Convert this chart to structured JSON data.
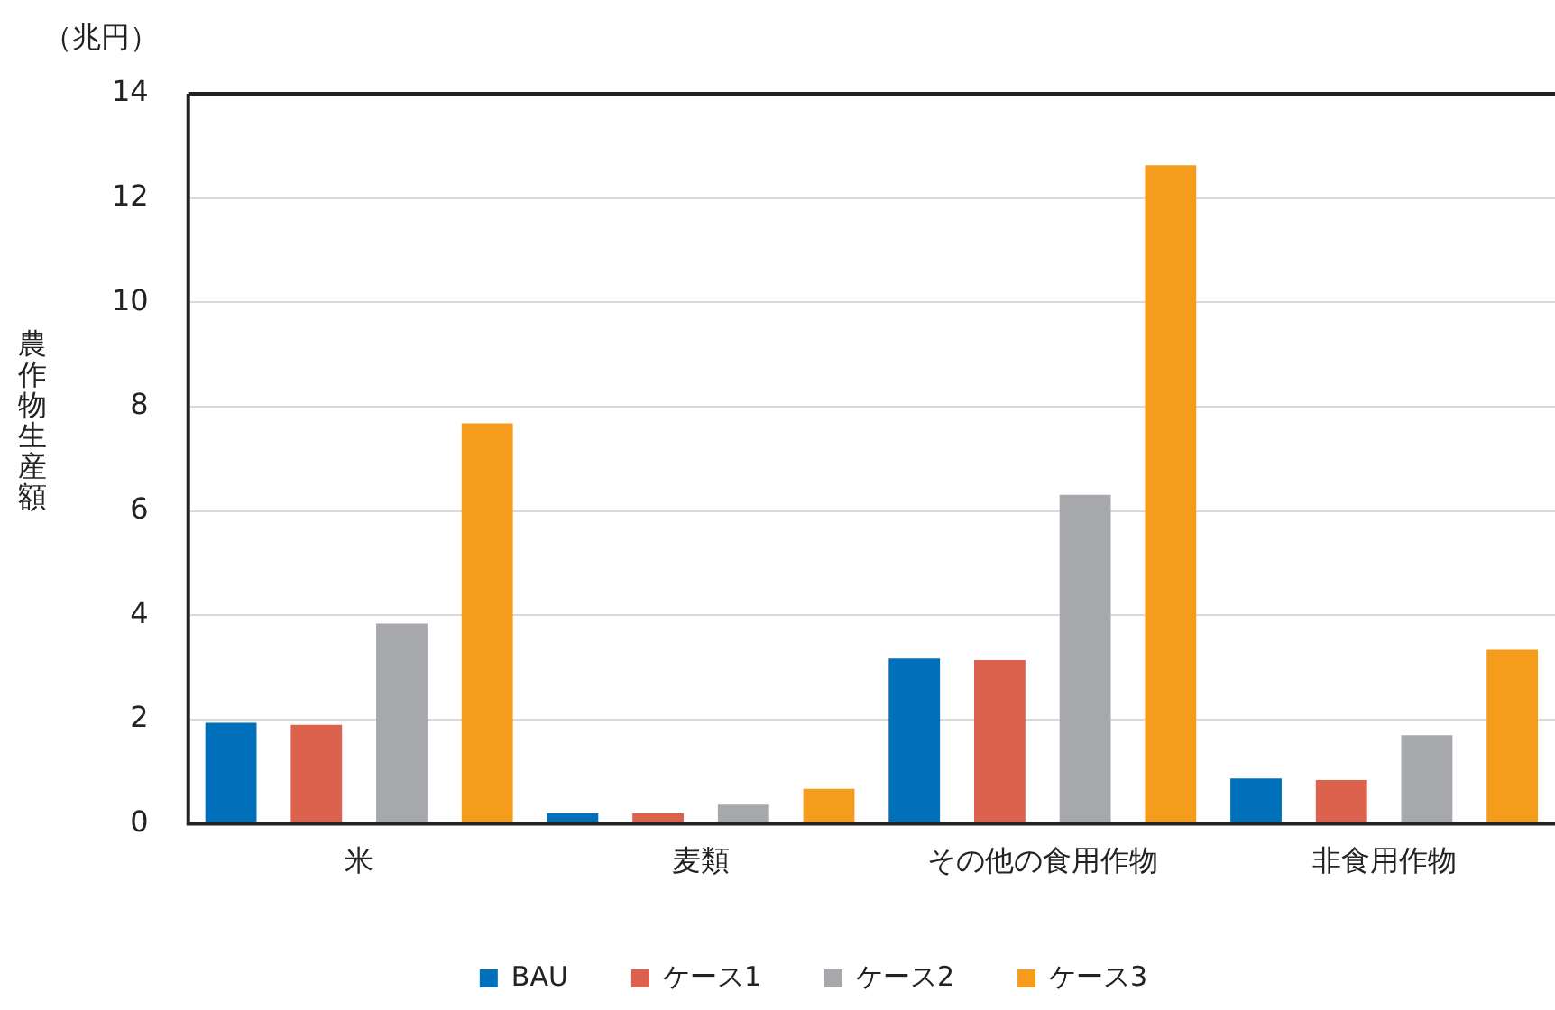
{
  "chart_data": {
    "type": "bar",
    "ylabel": "農作物生産額",
    "annotations": [
      "（兆円）"
    ],
    "categories": [
      "米",
      "麦類",
      "その他の食用作物",
      "非食用作物"
    ],
    "series": [
      {
        "name": "BAU",
        "color": "#0070ba",
        "values": [
          1.94,
          0.2,
          3.17,
          0.87
        ]
      },
      {
        "name": "ケース1",
        "color": "#dc624d",
        "values": [
          1.9,
          0.2,
          3.14,
          0.84
        ]
      },
      {
        "name": "ケース2",
        "color": "#a7a8ab",
        "values": [
          3.84,
          0.37,
          6.31,
          1.7
        ]
      },
      {
        "name": "ケース3",
        "color": "#f59c1c",
        "values": [
          7.68,
          0.67,
          12.63,
          3.34
        ]
      }
    ],
    "ylim": [
      0,
      14
    ],
    "yticks": [
      0,
      2,
      4,
      6,
      8,
      10,
      12,
      14
    ],
    "grid": "y",
    "legend": "bottom"
  }
}
